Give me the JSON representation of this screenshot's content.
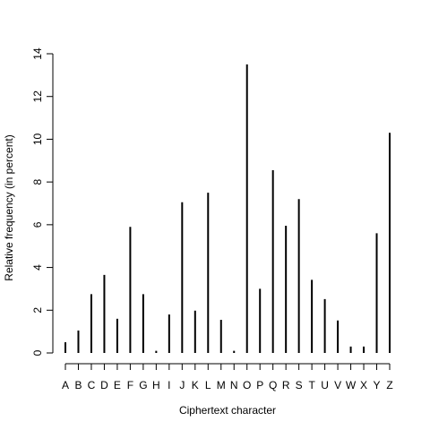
{
  "chart_data": {
    "type": "bar",
    "title": "",
    "xlabel": "Ciphertext character",
    "ylabel": "Relative frequency (in percent)",
    "categories": [
      "A",
      "B",
      "C",
      "D",
      "E",
      "F",
      "G",
      "H",
      "I",
      "J",
      "K",
      "L",
      "M",
      "N",
      "O",
      "P",
      "Q",
      "R",
      "S",
      "T",
      "U",
      "V",
      "W",
      "X",
      "Y",
      "Z"
    ],
    "values": [
      0.5,
      1.05,
      2.75,
      3.65,
      1.6,
      5.9,
      2.75,
      0.1,
      1.8,
      7.05,
      1.98,
      7.5,
      1.55,
      0.1,
      13.5,
      3.0,
      8.55,
      5.95,
      7.2,
      3.42,
      2.52,
      1.52,
      0.3,
      0.3,
      5.6,
      10.3
    ],
    "yticks": [
      0,
      2,
      4,
      6,
      8,
      10,
      12,
      14
    ],
    "ylim": [
      0,
      14
    ],
    "grid": false
  }
}
